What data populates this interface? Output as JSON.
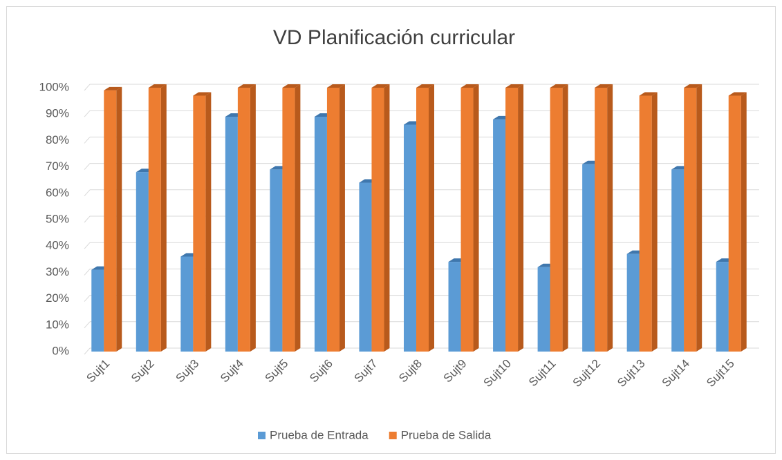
{
  "chart_data": {
    "type": "bar3d",
    "title": "VD Planificación curricular",
    "categories": [
      "Sujt1",
      "Sujt2",
      "Sujt3",
      "Sujt4",
      "Sujt5",
      "Sujt6",
      "Sujt7",
      "Sujt8",
      "Sujt9",
      "Sujt10",
      "Sujt11",
      "Sujt12",
      "Sujt13",
      "Sujt14",
      "Sujt15"
    ],
    "series": [
      {
        "name": "Prueba de Entrada",
        "color": "#5b9bd5",
        "side": "#3f77ad",
        "values": [
          31,
          68,
          36,
          89,
          69,
          89,
          64,
          86,
          34,
          88,
          32,
          71,
          37,
          69,
          34
        ]
      },
      {
        "name": "Prueba de Salida",
        "color": "#ed7d31",
        "side": "#b85a1c",
        "values": [
          99,
          100,
          97,
          100,
          100,
          100,
          100,
          100,
          100,
          100,
          100,
          100,
          97,
          100,
          97
        ]
      }
    ],
    "ylim": [
      0,
      100
    ],
    "yticks": [
      {
        "value": 0,
        "label": "0%"
      },
      {
        "value": 10,
        "label": "10%"
      },
      {
        "value": 20,
        "label": "20%"
      },
      {
        "value": 30,
        "label": "30%"
      },
      {
        "value": 40,
        "label": "40%"
      },
      {
        "value": 50,
        "label": "50%"
      },
      {
        "value": 60,
        "label": "60%"
      },
      {
        "value": 70,
        "label": "70%"
      },
      {
        "value": 80,
        "label": "80%"
      },
      {
        "value": 90,
        "label": "90%"
      },
      {
        "value": 100,
        "label": "100%"
      }
    ],
    "grid": true,
    "legend": "bottom"
  }
}
